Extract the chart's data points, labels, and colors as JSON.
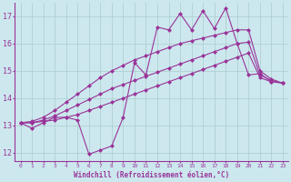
{
  "xlabel": "Windchill (Refroidissement éolien,°C)",
  "bg_color": "#cce8ee",
  "line_color": "#993399",
  "grid_color": "#aacccc",
  "xlim": [
    -0.5,
    23.5
  ],
  "ylim": [
    11.7,
    17.5
  ],
  "yticks": [
    12,
    13,
    14,
    15,
    16,
    17
  ],
  "xticks": [
    0,
    1,
    2,
    3,
    4,
    5,
    6,
    7,
    8,
    9,
    10,
    11,
    12,
    13,
    14,
    15,
    16,
    17,
    18,
    19,
    20,
    21,
    22,
    23
  ],
  "series1": [
    13.1,
    12.9,
    13.1,
    13.3,
    13.3,
    13.2,
    11.95,
    12.1,
    12.25,
    13.3,
    15.3,
    14.85,
    16.6,
    16.5,
    17.1,
    16.5,
    17.2,
    16.55,
    17.3,
    16.0,
    14.85,
    14.9,
    14.6,
    null
  ],
  "series2": [
    13.1,
    13.1,
    13.15,
    13.2,
    13.3,
    13.4,
    13.55,
    13.7,
    13.85,
    14.0,
    14.15,
    14.3,
    14.45,
    14.6,
    14.75,
    14.9,
    15.05,
    15.2,
    15.35,
    15.5,
    15.65,
    14.75,
    14.6,
    14.55
  ],
  "series3": [
    13.1,
    13.1,
    13.2,
    13.35,
    13.55,
    13.75,
    13.95,
    14.15,
    14.35,
    14.5,
    14.65,
    14.8,
    14.95,
    15.1,
    15.25,
    15.4,
    15.55,
    15.7,
    15.85,
    16.0,
    16.05,
    14.85,
    14.65,
    14.55
  ],
  "series4": [
    13.1,
    13.15,
    13.3,
    13.55,
    13.85,
    14.15,
    14.45,
    14.75,
    15.0,
    15.2,
    15.4,
    15.55,
    15.7,
    15.85,
    16.0,
    16.1,
    16.2,
    16.3,
    16.4,
    16.5,
    16.5,
    15.0,
    14.7,
    14.55
  ]
}
